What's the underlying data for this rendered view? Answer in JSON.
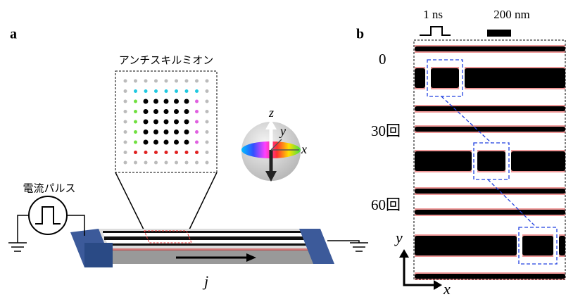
{
  "panel_a": {
    "label": "a",
    "inset_title": "アンチスキルミオン",
    "source_label": "電流パルス",
    "current_label": "j",
    "axes": {
      "z": "z",
      "y": "y",
      "x": "x"
    }
  },
  "panel_b": {
    "label": "b",
    "pulse_label": "1 ns",
    "scale_label": "200 nm",
    "rows": [
      "0",
      "30回",
      "60回"
    ],
    "axes": {
      "y": "y",
      "x": "x"
    }
  }
}
